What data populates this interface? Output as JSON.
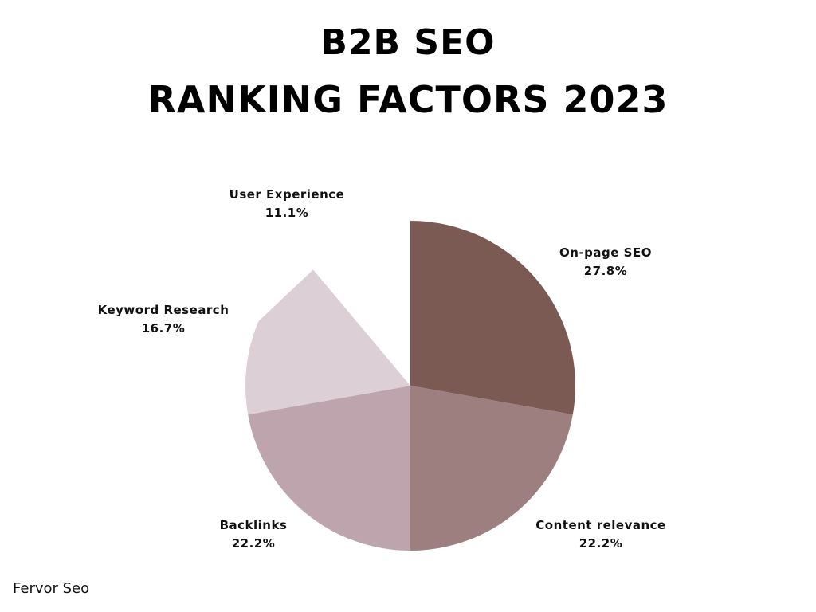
{
  "title": {
    "line1": "B2B SEO",
    "line2": "RANKING FACTORS 2023"
  },
  "footer": {
    "brand": "Fervor Seo"
  },
  "chart_data": {
    "type": "pie",
    "title": "B2B SEO RANKING FACTORS 2023",
    "slices": [
      {
        "label": "On-page SEO",
        "value": 27.8,
        "value_text": "27.8%",
        "color": "#7b5a53"
      },
      {
        "label": "Content relevance",
        "value": 22.2,
        "value_text": "22.2%",
        "color": "#9d7f80"
      },
      {
        "label": "Backlinks",
        "value": 22.2,
        "value_text": "22.2%",
        "color": "#bea5ad"
      },
      {
        "label": "Keyword Research",
        "value": 16.7,
        "value_text": "16.7%",
        "color": "#dccfd5"
      },
      {
        "label": "User Experience",
        "value": 11.1,
        "value_text": "11.1%",
        "color": "#ffffff"
      }
    ],
    "start": "top, clockwise",
    "legend": "none (labels outside slices)"
  }
}
